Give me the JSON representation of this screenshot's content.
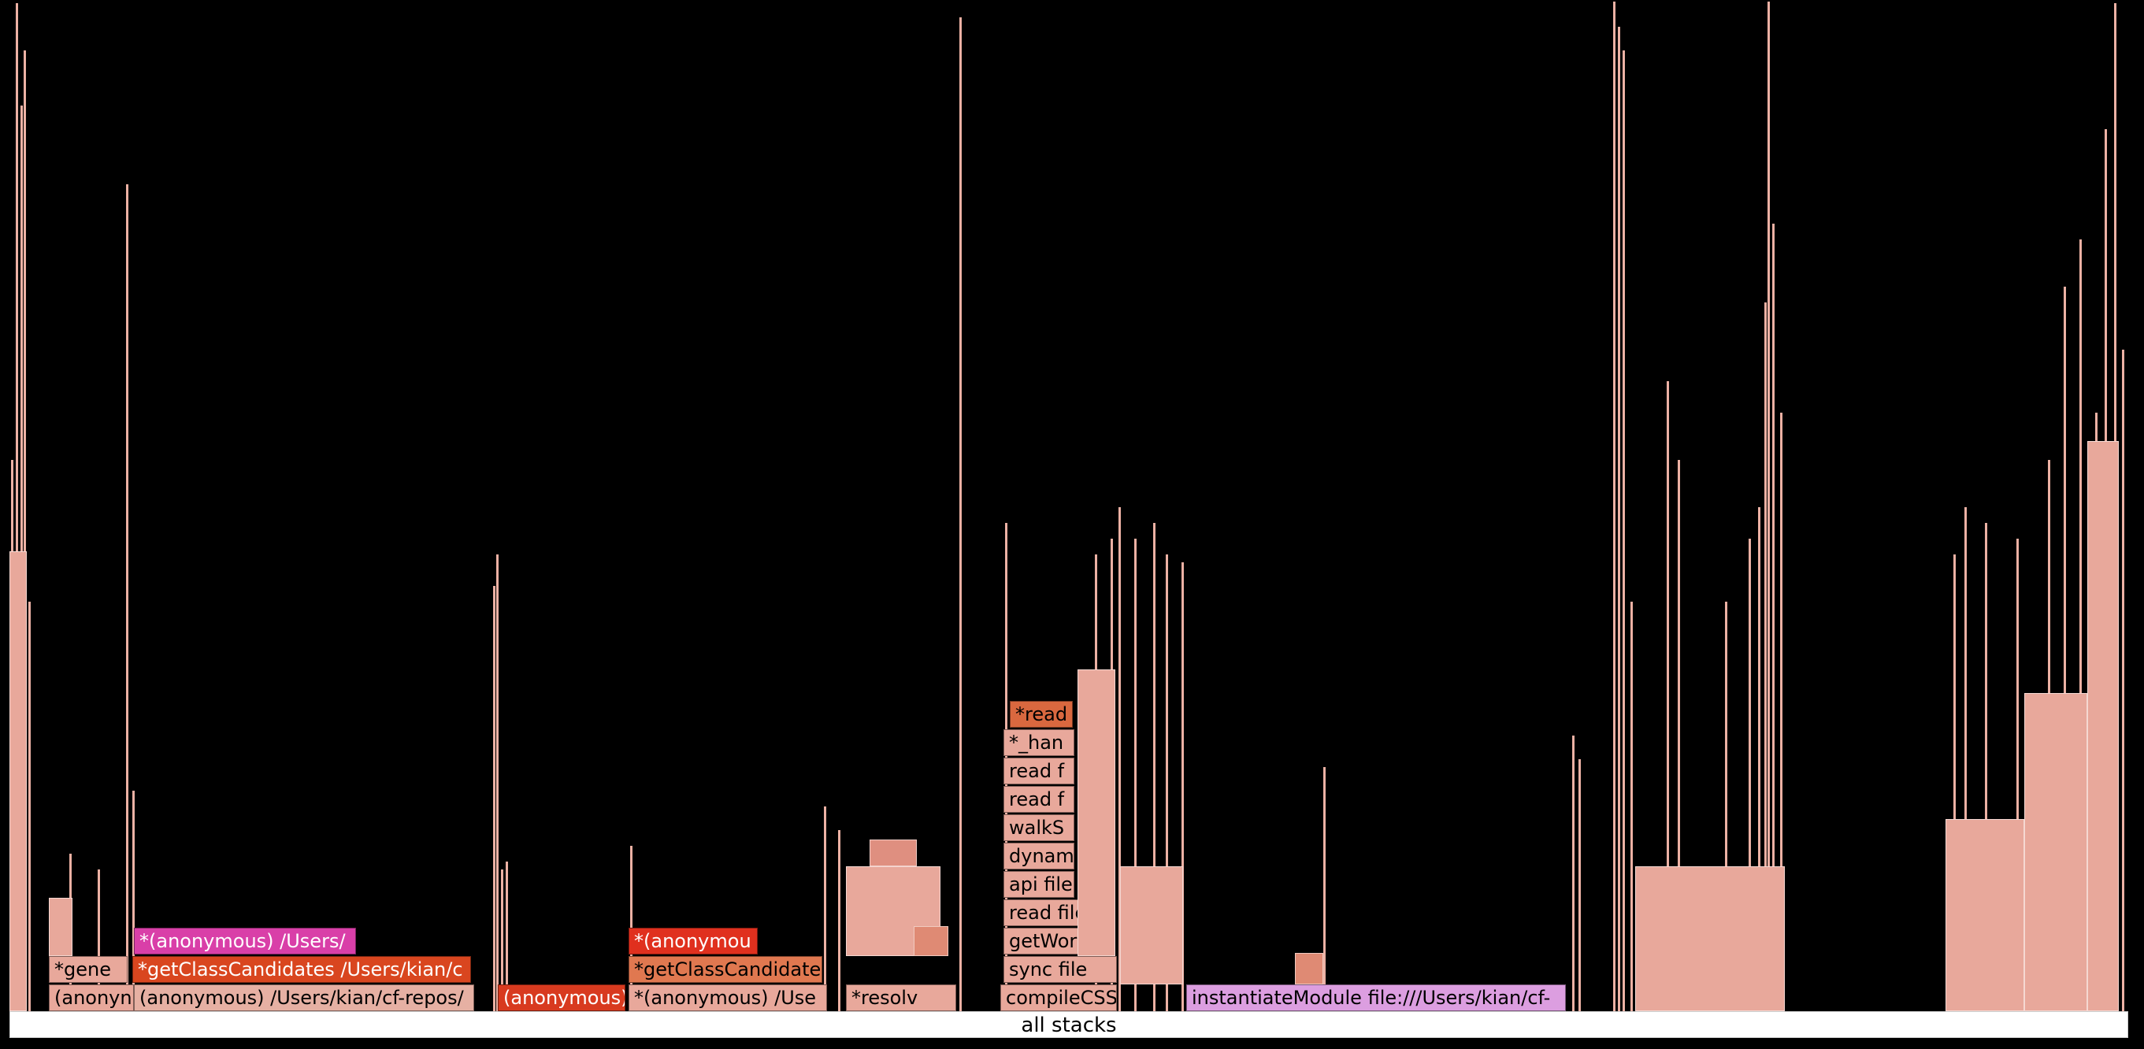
{
  "root": {
    "label": "all stacks"
  },
  "frames": {
    "anon_left": "(anonyn",
    "anon_main": "(anonymous) /Users/kian/cf-repos/",
    "anon_red": "(anonymous)",
    "anon_mid": "*(anonymous) /Use",
    "resolve": "*resolv",
    "compile_css": "compileCSS",
    "instantiate": "instantiateModule file:///Users/kian/cf-",
    "gene": "*gene",
    "get_class_1": "*getClassCandidates /Users/kian/c",
    "get_class_2": "*getClassCandidate",
    "sync_file": "sync file",
    "anon_pink": "*(anonymous) /Users/",
    "anon_red2": "*(anonymou",
    "get_works": "getWorks",
    "read_file1": "read file",
    "api_file": "api file",
    "dynam": "dynam",
    "walk": "walkS",
    "read_f2": "read f",
    "read_f3": "read f",
    "han": "*_han",
    "read_top": "*read"
  },
  "colors": {
    "background": "#000000",
    "salmon": "#e8a89b",
    "red": "#d83a1f",
    "bright_red": "#e0301e",
    "orange_red": "#d9461f",
    "magenta": "#d93fa8",
    "lavender": "#dc9ee0",
    "tan": "#d9b3a5",
    "orange": "#e07850"
  }
}
